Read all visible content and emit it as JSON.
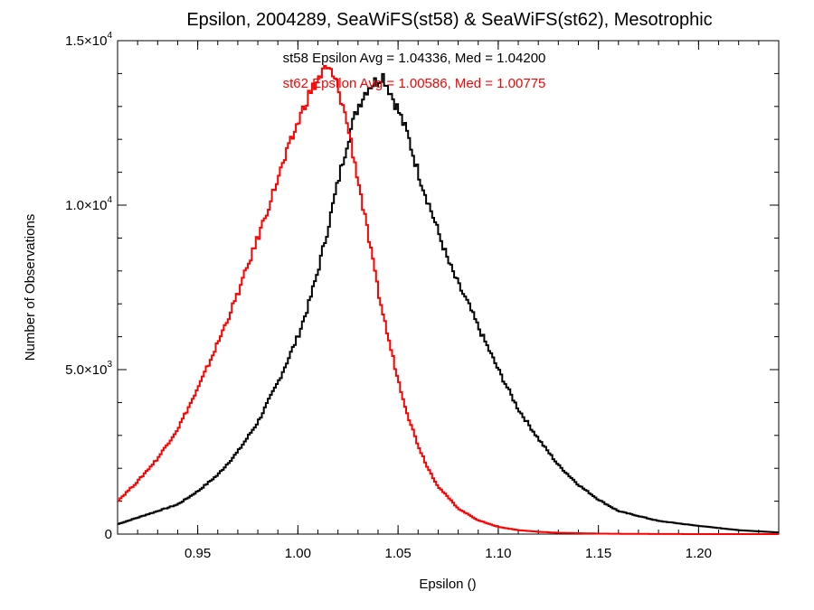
{
  "chart_data": {
    "type": "line",
    "title": "Epsilon, 2004289, SeaWiFS(st58) & SeaWiFS(st62), Mesotrophic",
    "xlabel": "Epsilon ()",
    "ylabel": "Number of Observations",
    "xlim": [
      0.91,
      1.24
    ],
    "ylim": [
      0,
      15000
    ],
    "x_ticks": [
      {
        "value": 0.95,
        "label": "0.95"
      },
      {
        "value": 1.0,
        "label": "1.00"
      },
      {
        "value": 1.05,
        "label": "1.05"
      },
      {
        "value": 1.1,
        "label": "1.10"
      },
      {
        "value": 1.15,
        "label": "1.15"
      },
      {
        "value": 1.2,
        "label": "1.20"
      }
    ],
    "y_ticks": [
      {
        "value": 0,
        "mantissa": "0",
        "exponent": ""
      },
      {
        "value": 5000,
        "mantissa": "5.0×10",
        "exponent": "3"
      },
      {
        "value": 10000,
        "mantissa": "1.0×10",
        "exponent": "4"
      },
      {
        "value": 15000,
        "mantissa": "1.5×10",
        "exponent": "4"
      }
    ],
    "x_minor_step": 0.01,
    "y_minor_step": 1000,
    "grid": false,
    "annotations": [
      {
        "text": "st58 Epsilon Avg = 1.04336, Med = 1.04200",
        "color": "#000000"
      },
      {
        "text": "st62 Epsilon Avg = 1.00586, Med = 1.00775",
        "color": "#ff0000"
      }
    ],
    "series": [
      {
        "color": "#000000",
        "step": "histogram",
        "x": [
          0.91,
          0.92,
          0.93,
          0.94,
          0.95,
          0.96,
          0.97,
          0.98,
          0.99,
          1.0,
          1.005,
          1.01,
          1.015,
          1.02,
          1.025,
          1.03,
          1.035,
          1.04,
          1.042,
          1.045,
          1.05,
          1.055,
          1.06,
          1.065,
          1.07,
          1.075,
          1.08,
          1.085,
          1.09,
          1.1,
          1.11,
          1.12,
          1.13,
          1.14,
          1.15,
          1.16,
          1.18,
          1.2,
          1.22,
          1.24
        ],
        "y": [
          300,
          500,
          700,
          900,
          1300,
          1800,
          2500,
          3400,
          4600,
          6000,
          6900,
          8000,
          9300,
          10700,
          12000,
          13000,
          13600,
          13800,
          14000,
          13600,
          12900,
          12100,
          11000,
          10100,
          9200,
          8300,
          7600,
          7000,
          6300,
          5000,
          3800,
          2900,
          2100,
          1500,
          1050,
          700,
          400,
          250,
          120,
          50
        ]
      },
      {
        "color": "#ff0000",
        "step": "histogram",
        "x": [
          0.91,
          0.92,
          0.93,
          0.94,
          0.95,
          0.96,
          0.97,
          0.98,
          0.99,
          1.0,
          1.005,
          1.01,
          1.013,
          1.016,
          1.02,
          1.025,
          1.03,
          1.035,
          1.04,
          1.045,
          1.05,
          1.055,
          1.06,
          1.065,
          1.07,
          1.08,
          1.09,
          1.1,
          1.11,
          1.12,
          1.13,
          1.15,
          1.17,
          1.2,
          1.24
        ],
        "y": [
          1000,
          1600,
          2300,
          3200,
          4400,
          5800,
          7300,
          9000,
          10800,
          12500,
          13300,
          13800,
          14100,
          14100,
          13600,
          12400,
          10800,
          9100,
          7400,
          6000,
          4700,
          3600,
          2700,
          2000,
          1450,
          780,
          420,
          220,
          120,
          70,
          40,
          15,
          5,
          0,
          0
        ]
      }
    ]
  }
}
